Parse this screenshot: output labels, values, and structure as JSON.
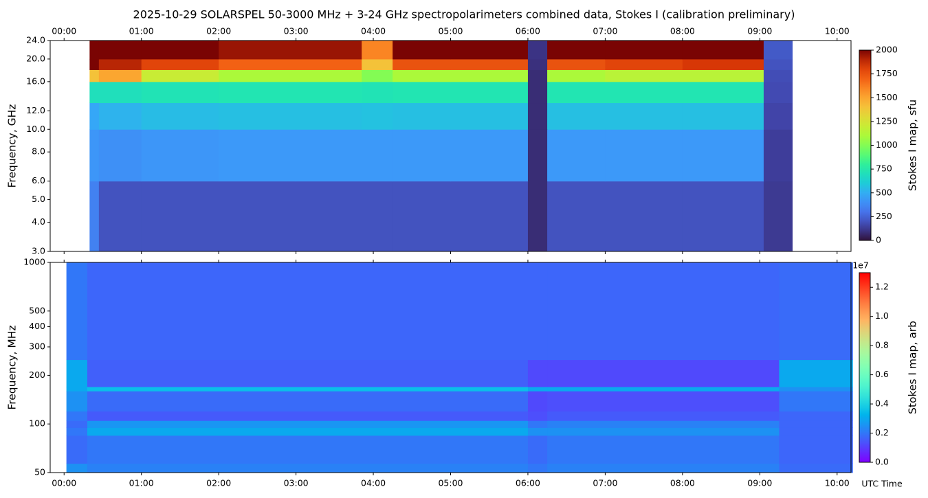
{
  "chart_data": [
    {
      "type": "heatmap",
      "title": "2025-10-29  SOLARSPEL  50-3000 MHz  +  3-24 GHz  spectropolarimeters combined data,  Stokes I  (calibration preliminary)",
      "ylabel": "Frequency, GHz",
      "log_y": true,
      "xlim": [
        -0.18,
        10.18
      ],
      "ylim": [
        3,
        24
      ],
      "xticks": [
        {
          "value": 0,
          "label": "00:00"
        },
        {
          "value": 1,
          "label": "01:00"
        },
        {
          "value": 2,
          "label": "02:00"
        },
        {
          "value": 3,
          "label": "03:00"
        },
        {
          "value": 4,
          "label": "04:00"
        },
        {
          "value": 5,
          "label": "05:00"
        },
        {
          "value": 6,
          "label": "06:00"
        },
        {
          "value": 7,
          "label": "07:00"
        },
        {
          "value": 8,
          "label": "08:00"
        },
        {
          "value": 9,
          "label": "09:00"
        },
        {
          "value": 10,
          "label": "10:00"
        }
      ],
      "yticks": [
        {
          "value": 3,
          "label": "3.0"
        },
        {
          "value": 4,
          "label": "4.0"
        },
        {
          "value": 5,
          "label": "5.0"
        },
        {
          "value": 6,
          "label": "6.0"
        },
        {
          "value": 8,
          "label": "8.0"
        },
        {
          "value": 10,
          "label": "10.0"
        },
        {
          "value": 12,
          "label": "12.0"
        },
        {
          "value": 16,
          "label": "16.0"
        },
        {
          "value": 20,
          "label": "20.0"
        },
        {
          "value": 24,
          "label": "24.0"
        }
      ],
      "x_edges": [
        0.33,
        0.45,
        1.0,
        2.0,
        3.0,
        3.85,
        4.25,
        5.0,
        6.0,
        6.25,
        7.0,
        8.0,
        9.05,
        9.42
      ],
      "y_edges": [
        3,
        6,
        10,
        13,
        16,
        18,
        20,
        24
      ],
      "values": [
        [
          350,
          200,
          200,
          200,
          200,
          200,
          200,
          200,
          80,
          200,
          200,
          200,
          120
        ],
        [
          420,
          400,
          420,
          430,
          430,
          430,
          430,
          430,
          80,
          430,
          430,
          430,
          130
        ],
        [
          480,
          520,
          550,
          560,
          560,
          570,
          560,
          560,
          80,
          560,
          560,
          560,
          150
        ],
        [
          700,
          700,
          720,
          730,
          730,
          720,
          730,
          730,
          80,
          730,
          730,
          730,
          170
        ],
        [
          1400,
          1500,
          1200,
          1100,
          1100,
          1000,
          1100,
          1100,
          80,
          1100,
          1150,
          1150,
          180
        ],
        [
          2000,
          1900,
          1800,
          1700,
          1700,
          1400,
          1750,
          1750,
          90,
          1750,
          1800,
          1850,
          200
        ],
        [
          2000,
          2000,
          2000,
          1950,
          1950,
          1600,
          2000,
          2000,
          100,
          2000,
          2000,
          2000,
          220
        ]
      ],
      "colorbar": {
        "label": "Stokes I map, sfu",
        "colormap": "turbo",
        "lim": [
          0,
          2000
        ],
        "ticks": [
          0,
          250,
          500,
          750,
          1000,
          1250,
          1500,
          1750,
          2000
        ]
      }
    },
    {
      "type": "heatmap",
      "ylabel": "Frequency, MHz",
      "xlabel": "UTC Time",
      "log_y": true,
      "xlim": [
        -0.18,
        10.18
      ],
      "ylim": [
        50,
        1000
      ],
      "xticks": [
        {
          "value": 0,
          "label": "00:00"
        },
        {
          "value": 1,
          "label": "01:00"
        },
        {
          "value": 2,
          "label": "02:00"
        },
        {
          "value": 3,
          "label": "03:00"
        },
        {
          "value": 4,
          "label": "04:00"
        },
        {
          "value": 5,
          "label": "05:00"
        },
        {
          "value": 6,
          "label": "06:00"
        },
        {
          "value": 7,
          "label": "07:00"
        },
        {
          "value": 8,
          "label": "08:00"
        },
        {
          "value": 9,
          "label": "09:00"
        },
        {
          "value": 10,
          "label": "10:00"
        }
      ],
      "yticks": [
        50,
        100,
        200,
        300,
        400,
        500,
        1000
      ],
      "x_edges": [
        0.03,
        0.3,
        6.0,
        6.25,
        9.25,
        10.2
      ],
      "y_edges": [
        50,
        57,
        85,
        95,
        105,
        120,
        160,
        170,
        250,
        1000
      ],
      "values": [
        [
          0.25,
          0.22,
          0.2,
          0.22,
          0.18
        ],
        [
          0.18,
          0.2,
          0.18,
          0.2,
          0.17
        ],
        [
          0.2,
          0.3,
          0.25,
          0.25,
          0.17
        ],
        [
          0.18,
          0.26,
          0.2,
          0.22,
          0.17
        ],
        [
          0.2,
          0.15,
          0.13,
          0.15,
          0.17
        ],
        [
          0.25,
          0.18,
          0.12,
          0.13,
          0.2
        ],
        [
          0.3,
          0.35,
          0.3,
          0.3,
          0.25
        ],
        [
          0.3,
          0.16,
          0.12,
          0.12,
          0.3
        ],
        [
          0.2,
          0.17,
          0.17,
          0.17,
          0.18
        ]
      ],
      "colorbar": {
        "label": "Stokes I map, arb",
        "colormap": "rainbow",
        "offset_label": "1e7",
        "lim": [
          0,
          1.3
        ],
        "ticks": [
          {
            "value": 0,
            "label": "0.0"
          },
          {
            "value": 0.2,
            "label": "0.2"
          },
          {
            "value": 0.4,
            "label": "0.4"
          },
          {
            "value": 0.6,
            "label": "0.6"
          },
          {
            "value": 0.8,
            "label": "0.8"
          },
          {
            "value": 1.0,
            "label": "1.0"
          },
          {
            "value": 1.2,
            "label": "1.2"
          }
        ]
      }
    }
  ]
}
